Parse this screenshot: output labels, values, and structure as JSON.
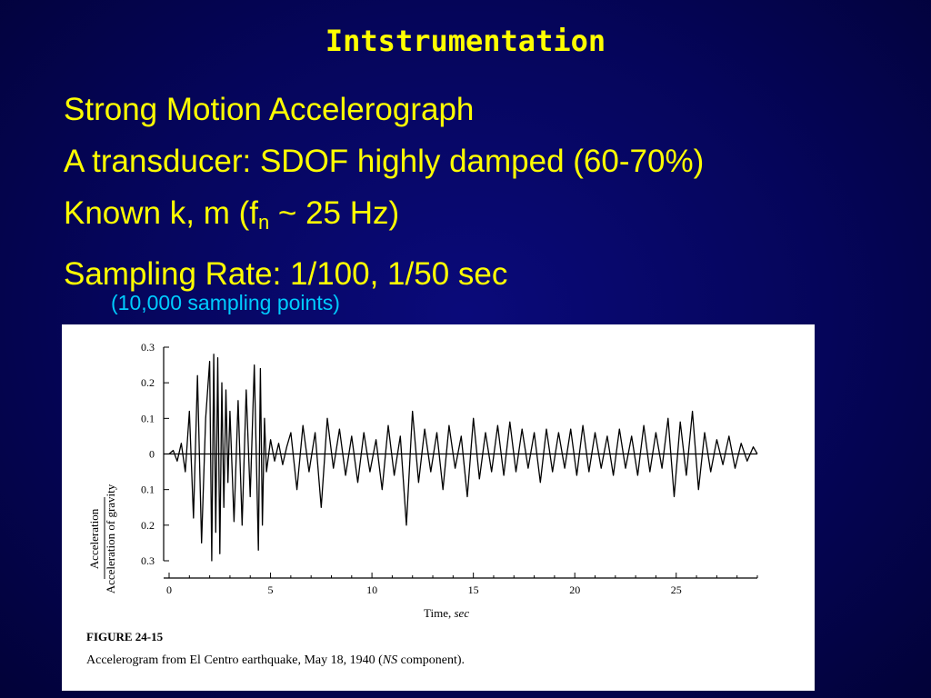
{
  "slide": {
    "title": "Intstrumentation",
    "bullets": [
      "Strong Motion Accelerograph",
      "A transducer: SDOF highly damped (60-70%)"
    ],
    "known_prefix": "Known k, m  (f",
    "known_sub": "n",
    "known_suffix": " ~ 25 Hz)",
    "sampling": "Sampling Rate: 1/100, 1/50 sec",
    "subnote": "(10,000 sampling points)"
  },
  "figure": {
    "caption_head": "FIGURE 24-15",
    "caption_prefix": "Accelerogram from El Centro earthquake, May 18, 1940 (",
    "caption_italic": "NS",
    "caption_suffix": " component).",
    "xlabel_word": "Time, ",
    "xlabel_unit": "sec",
    "ylabel_top": "Acceleration",
    "ylabel_bottom": "Acceleration of gravity"
  },
  "colors": {
    "background": "#05055a",
    "title": "#ffff00",
    "bullet_text": "#ffff00",
    "subnote": "#00ccff",
    "figure_bg": "#ffffff"
  },
  "chart_data": {
    "type": "line",
    "xlabel": "Time, sec",
    "ylabel": "Acceleration / Acceleration of gravity",
    "xlim": [
      0,
      29
    ],
    "ylim": [
      -0.3,
      0.3
    ],
    "x_ticks": [
      "0",
      "5",
      "10",
      "15",
      "20",
      "25"
    ],
    "y_ticks": [
      "0.3",
      "0.2",
      "0.1",
      "0",
      "0.1",
      "0.2",
      "0.3"
    ],
    "grid": false,
    "series": [
      {
        "x": [
          0,
          0.2,
          0.4,
          0.6,
          0.8,
          1.0,
          1.2,
          1.4,
          1.6,
          1.8,
          2.0,
          2.1,
          2.2,
          2.3,
          2.4,
          2.5,
          2.6,
          2.7,
          2.8,
          2.9,
          3.0,
          3.2,
          3.4,
          3.6,
          3.8,
          4.0,
          4.2,
          4.4,
          4.5,
          4.6,
          4.7,
          4.8,
          5.0,
          5.2,
          5.4,
          5.6,
          5.8,
          6.0,
          6.3,
          6.6,
          6.9,
          7.2,
          7.5,
          7.8,
          8.1,
          8.4,
          8.7,
          9.0,
          9.3,
          9.6,
          9.9,
          10.2,
          10.5,
          10.8,
          11.1,
          11.4,
          11.7,
          12.0,
          12.3,
          12.6,
          12.9,
          13.2,
          13.5,
          13.8,
          14.1,
          14.4,
          14.7,
          15.0,
          15.3,
          15.6,
          15.9,
          16.2,
          16.5,
          16.8,
          17.1,
          17.4,
          17.7,
          18.0,
          18.3,
          18.6,
          18.9,
          19.2,
          19.5,
          19.8,
          20.1,
          20.4,
          20.7,
          21.0,
          21.3,
          21.6,
          21.9,
          22.2,
          22.5,
          22.8,
          23.1,
          23.4,
          23.7,
          24.0,
          24.3,
          24.6,
          24.9,
          25.2,
          25.5,
          25.8,
          26.1,
          26.4,
          26.7,
          27.0,
          27.3,
          27.6,
          27.9,
          28.2,
          28.5,
          28.8,
          29.0
        ],
        "y": [
          0,
          0.01,
          -0.02,
          0.03,
          -0.05,
          0.12,
          -0.18,
          0.22,
          -0.25,
          0.1,
          0.26,
          -0.3,
          0.28,
          -0.22,
          0.27,
          -0.28,
          0.2,
          -0.15,
          0.18,
          -0.08,
          0.12,
          -0.19,
          0.15,
          -0.2,
          0.18,
          -0.12,
          0.25,
          -0.27,
          0.24,
          -0.2,
          0.1,
          -0.05,
          0.04,
          -0.02,
          0.03,
          -0.03,
          0.02,
          0.06,
          -0.1,
          0.08,
          -0.05,
          0.06,
          -0.15,
          0.1,
          -0.04,
          0.07,
          -0.06,
          0.05,
          -0.08,
          0.06,
          -0.05,
          0.04,
          -0.1,
          0.08,
          -0.06,
          0.05,
          -0.2,
          0.12,
          -0.08,
          0.07,
          -0.05,
          0.06,
          -0.1,
          0.08,
          -0.04,
          0.05,
          -0.12,
          0.1,
          -0.07,
          0.06,
          -0.05,
          0.08,
          -0.06,
          0.09,
          -0.05,
          0.07,
          -0.04,
          0.06,
          -0.08,
          0.07,
          -0.05,
          0.06,
          -0.04,
          0.07,
          -0.06,
          0.08,
          -0.05,
          0.06,
          -0.04,
          0.05,
          -0.06,
          0.07,
          -0.04,
          0.05,
          -0.06,
          0.08,
          -0.05,
          0.06,
          -0.04,
          0.1,
          -0.12,
          0.09,
          -0.06,
          0.12,
          -0.1,
          0.06,
          -0.05,
          0.04,
          -0.03,
          0.05,
          -0.04,
          0.03,
          -0.02,
          0.02,
          0.0
        ]
      }
    ]
  }
}
